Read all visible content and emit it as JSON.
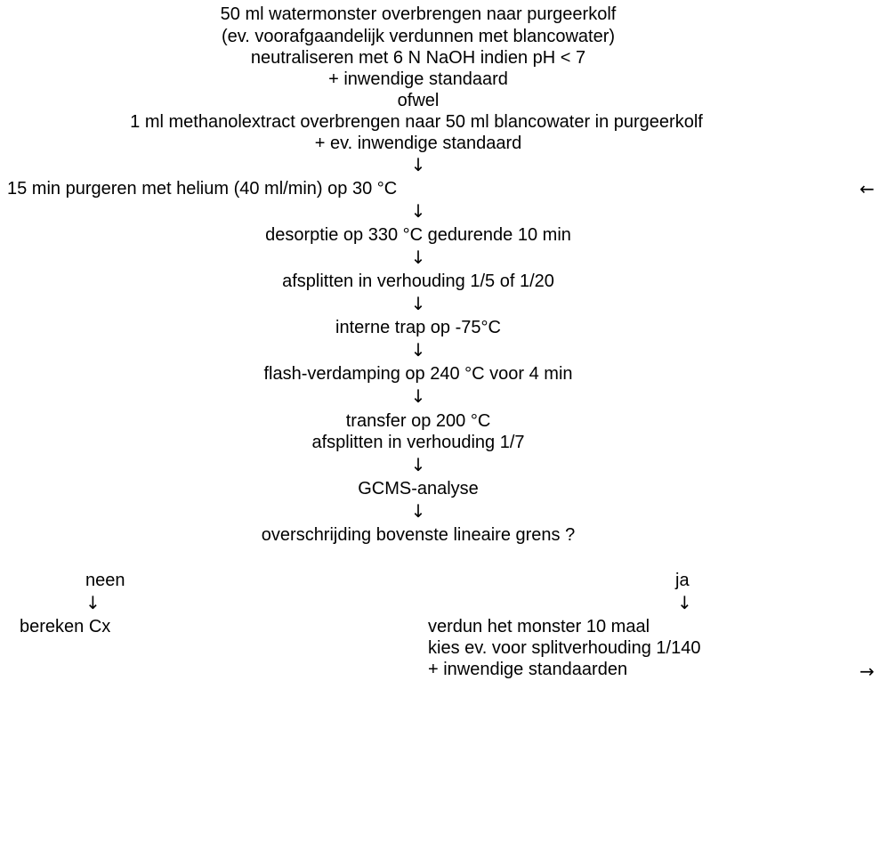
{
  "lines": [
    "50 ml watermonster overbrengen naar purgeerkolf",
    "(ev. voorafgaandelijk verdunnen met blancowater)",
    "neutraliseren met 6 N NaOH indien pH < 7",
    "+ inwendige standaard",
    "ofwel",
    "1 ml methanolextract overbrengen naar 50 ml blancowater in purgeerkolf",
    "+ ev. inwendige standaard"
  ],
  "purge": "15 min purgeren met helium (40 ml/min) op 30 °C",
  "desorption": "desorptie op 330 °C gedurende 10 min",
  "split1": "afsplitten in verhouding 1/5 of 1/20",
  "trap": "interne trap op -75°C",
  "flash": "flash-verdamping op 240 °C voor 4 min",
  "transfer": "transfer op 200 °C",
  "split2": "afsplitten in verhouding 1/7",
  "gcms": "GCMS-analyse",
  "question": "overschrijding bovenste lineaire grens ?",
  "no_label": "neen",
  "no_action": "bereken Cx",
  "yes_label": "ja",
  "yes_actions": [
    "verdun het monster 10 maal",
    "kies ev. voor splitverhouding 1/140",
    "+ inwendige standaarden"
  ],
  "arrows": {
    "down": "↓",
    "left": "←",
    "right": "→"
  }
}
